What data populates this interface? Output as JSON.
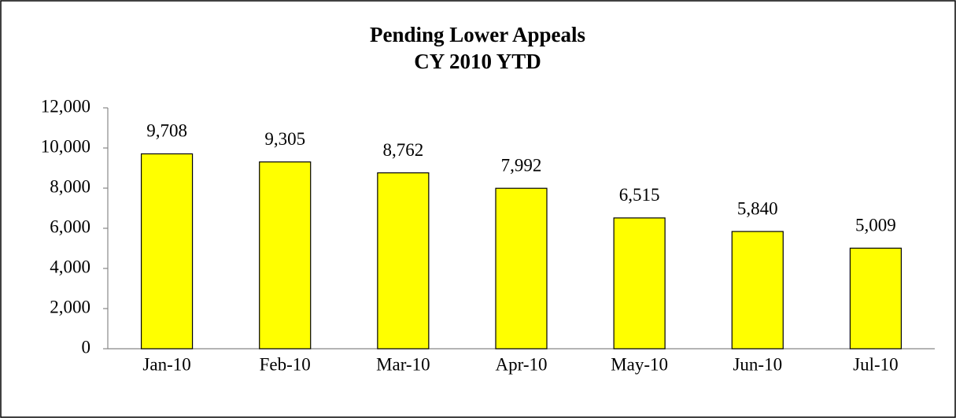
{
  "chart_data": {
    "type": "bar",
    "title": "Pending Lower Appeals",
    "subtitle": "CY 2010 YTD",
    "categories": [
      "Jan-10",
      "Feb-10",
      "Mar-10",
      "Apr-10",
      "May-10",
      "Jun-10",
      "Jul-10"
    ],
    "values": [
      9708,
      9305,
      8762,
      7992,
      6515,
      5840,
      5009
    ],
    "value_labels": [
      "9,708",
      "9,305",
      "8,762",
      "7,992",
      "6,515",
      "5,840",
      "5,009"
    ],
    "color": "#ffff00",
    "ylim": [
      0,
      12000
    ],
    "yticks": [
      0,
      {
        "value": 2000,
        "label": "2,000"
      },
      {
        "value": 4000,
        "label": "4,000"
      },
      {
        "value": 6000,
        "label": "6,000"
      },
      {
        "value": 8000,
        "label": "8,000"
      },
      {
        "value": 10000,
        "label": "10,000"
      },
      {
        "value": 12000,
        "label": "12,000"
      }
    ],
    "grid": false
  }
}
